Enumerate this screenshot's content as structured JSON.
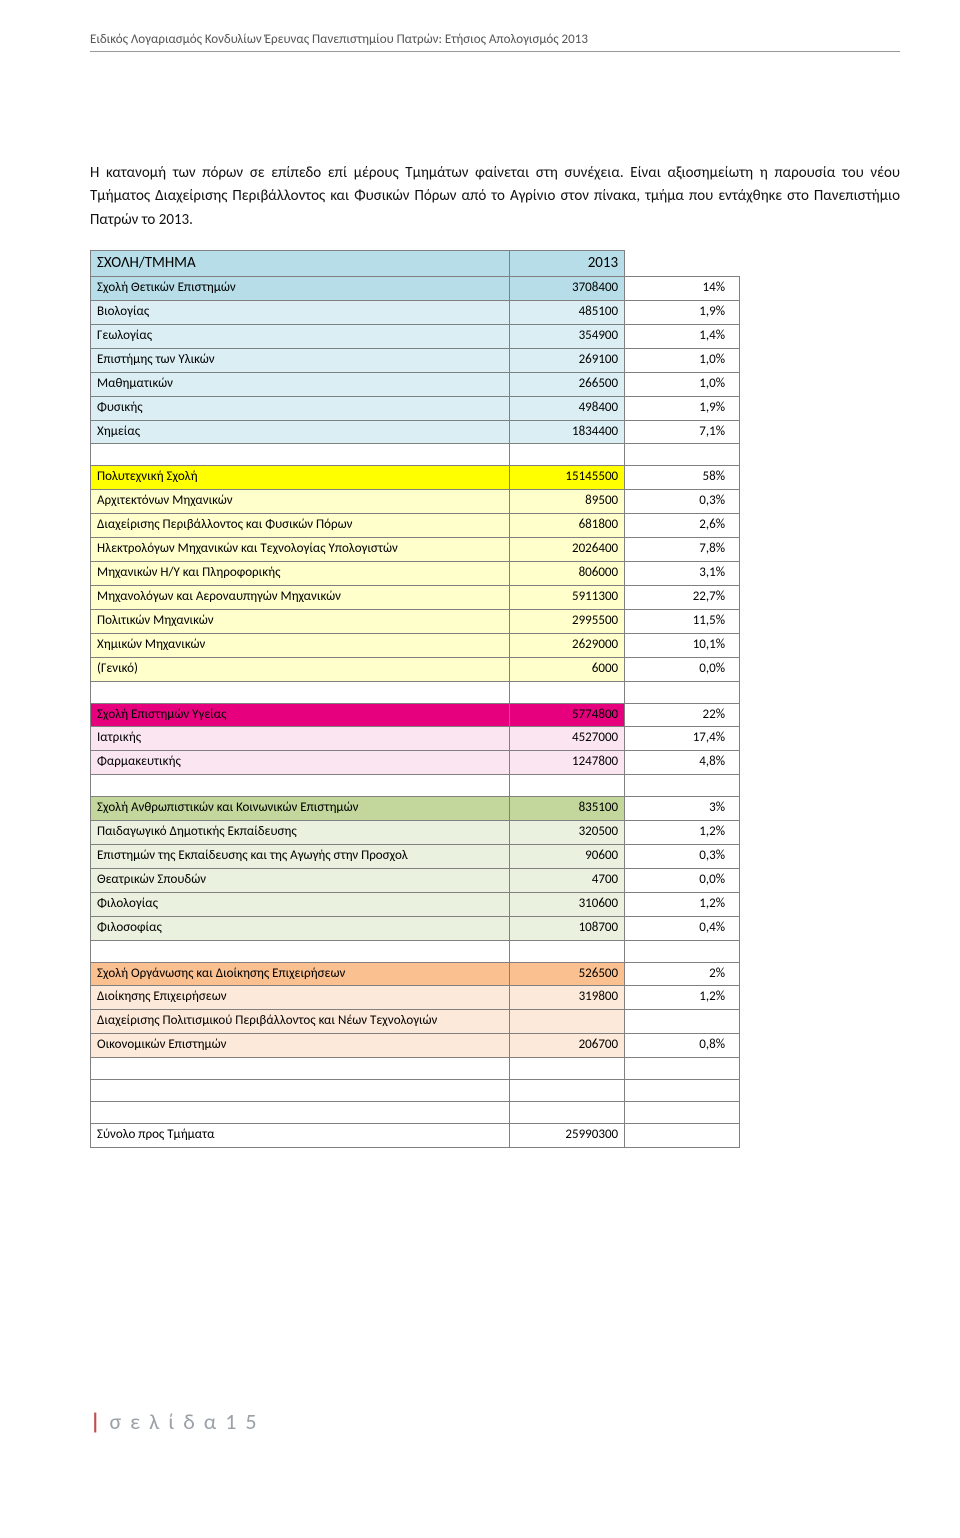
{
  "doc_header": "Ειδικός Λογαριασμός Κονδυλίων Έρευνας Πανεπιστημίου Πατρών: Ετήσιος Απολογισμός 2013",
  "intro": "Η κατανομή των πόρων σε επίπεδο επί μέρους Τμημάτων φαίνεται στη συνέχεια. Είναι αξιοσημείωτη η παρουσία του νέου Τμήματος Διαχείρισης Περιβάλλοντος και Φυσικών Πόρων από το Αγρίνιο στον πίνακα, τμήμα που εντάχθηκε στο Πανεπιστήμιο Πατρών το 2013.",
  "colors": {
    "header1_bg": "#b7dee8",
    "sec1_sub_bg": "#daeef3",
    "sec2_hdr_bg": "#ffff00",
    "sec2_sub_bg": "#ffffcc",
    "sec3_hdr_bg": "#e6007e",
    "sec3_sub_bg": "#fbe5f0",
    "sec4_hdr_bg": "#c3d69b",
    "sec4_sub_bg": "#eaf1de",
    "sec5_hdr_bg": "#fac090",
    "sec5_sub_bg": "#fde9d9",
    "text": "#000000"
  },
  "table": {
    "top_header": {
      "label": "ΣΧΟΛΗ/ΤΜΗΜΑ",
      "year": "2013"
    },
    "sections": [
      {
        "id": "sec1",
        "header": {
          "label": "Σχολή Θετικών Επιστημών",
          "value": "3708400",
          "pct": "14%"
        },
        "header_bg_key": "header1_bg",
        "sub_bg_key": "sec1_sub_bg",
        "rows": [
          {
            "label": "Βιολογίας",
            "value": "485100",
            "pct": "1,9%"
          },
          {
            "label": "Γεωλογίας",
            "value": "354900",
            "pct": "1,4%"
          },
          {
            "label": "Επιστήμης των Υλικών",
            "value": "269100",
            "pct": "1,0%"
          },
          {
            "label": "Μαθηματικών",
            "value": "266500",
            "pct": "1,0%"
          },
          {
            "label": "Φυσικής",
            "value": "498400",
            "pct": "1,9%"
          },
          {
            "label": "Χημείας",
            "value": "1834400",
            "pct": "7,1%"
          }
        ]
      },
      {
        "id": "sec2",
        "header": {
          "label": "Πολυτεχνική Σχολή",
          "value": "15145500",
          "pct": "58%"
        },
        "header_bg_key": "sec2_hdr_bg",
        "sub_bg_key": "sec2_sub_bg",
        "rows": [
          {
            "label": "Αρχιτεκτόνων Μηχανικών",
            "value": "89500",
            "pct": "0,3%"
          },
          {
            "label": "Διαχείρισης Περιβάλλοντος και Φυσικών Πόρων",
            "value": "681800",
            "pct": "2,6%"
          },
          {
            "label": "Ηλεκτρολόγων Μηχανικών και Τεχνολογίας Υπολογιστών",
            "value": "2026400",
            "pct": "7,8%"
          },
          {
            "label": "Μηχανικών Η/Υ και Πληροφορικής",
            "value": "806000",
            "pct": "3,1%"
          },
          {
            "label": "Μηχανολόγων και Αεροναυπηγών Μηχανικών",
            "value": "5911300",
            "pct": "22,7%"
          },
          {
            "label": "Πολιτικών Μηχανικών",
            "value": "2995500",
            "pct": "11,5%"
          },
          {
            "label": "Χημικών Μηχανικών",
            "value": "2629000",
            "pct": "10,1%"
          },
          {
            "label": "(Γενικό)",
            "value": "6000",
            "pct": "0,0%"
          }
        ]
      },
      {
        "id": "sec3",
        "header": {
          "label": "Σχολή Επιστημών Υγείας",
          "value": "5774800",
          "pct": "22%"
        },
        "header_bg_key": "sec3_hdr_bg",
        "sub_bg_key": "sec3_sub_bg",
        "rows": [
          {
            "label": "Ιατρικής",
            "value": "4527000",
            "pct": "17,4%"
          },
          {
            "label": "Φαρμακευτικής",
            "value": "1247800",
            "pct": "4,8%"
          }
        ]
      },
      {
        "id": "sec4",
        "header": {
          "label": "Σχολή Ανθρωπιστικών και Κοινωνικών Επιστημών",
          "value": "835100",
          "pct": "3%"
        },
        "header_bg_key": "sec4_hdr_bg",
        "sub_bg_key": "sec4_sub_bg",
        "rows": [
          {
            "label": "Παιδαγωγικό Δημοτικής Εκπαίδευσης",
            "value": "320500",
            "pct": "1,2%"
          },
          {
            "label": "Επιστημών της Εκπαίδευσης και της Αγωγής στην Προσχολ",
            "value": "90600",
            "pct": "0,3%"
          },
          {
            "label": "Θεατρικών Σπουδών",
            "value": "4700",
            "pct": "0,0%"
          },
          {
            "label": "Φιλολογίας",
            "value": "310600",
            "pct": "1,2%"
          },
          {
            "label": "Φιλοσοφίας",
            "value": "108700",
            "pct": "0,4%"
          }
        ]
      },
      {
        "id": "sec5",
        "header": {
          "label": "Σχολή Οργάνωσης και Διοίκησης Επιχειρήσεων",
          "value": "526500",
          "pct": "2%"
        },
        "header_bg_key": "sec5_hdr_bg",
        "sub_bg_key": "sec5_sub_bg",
        "rows": [
          {
            "label": "Διοίκησης Επιχειρήσεων",
            "value": "319800",
            "pct": "1,2%"
          },
          {
            "label": "Διαχείρισης Πολιτισμικού Περιβάλλοντος και Νέων Τεχνολογιών",
            "value": "",
            "pct": ""
          },
          {
            "label": "Οικονομικών Επιστημών",
            "value": "206700",
            "pct": "0,8%"
          }
        ]
      }
    ],
    "footer_row": {
      "label": "Σύνολο προς Τμήματα",
      "value": "25990300"
    }
  },
  "footer": "σ ε λ ί δ α  1 5"
}
